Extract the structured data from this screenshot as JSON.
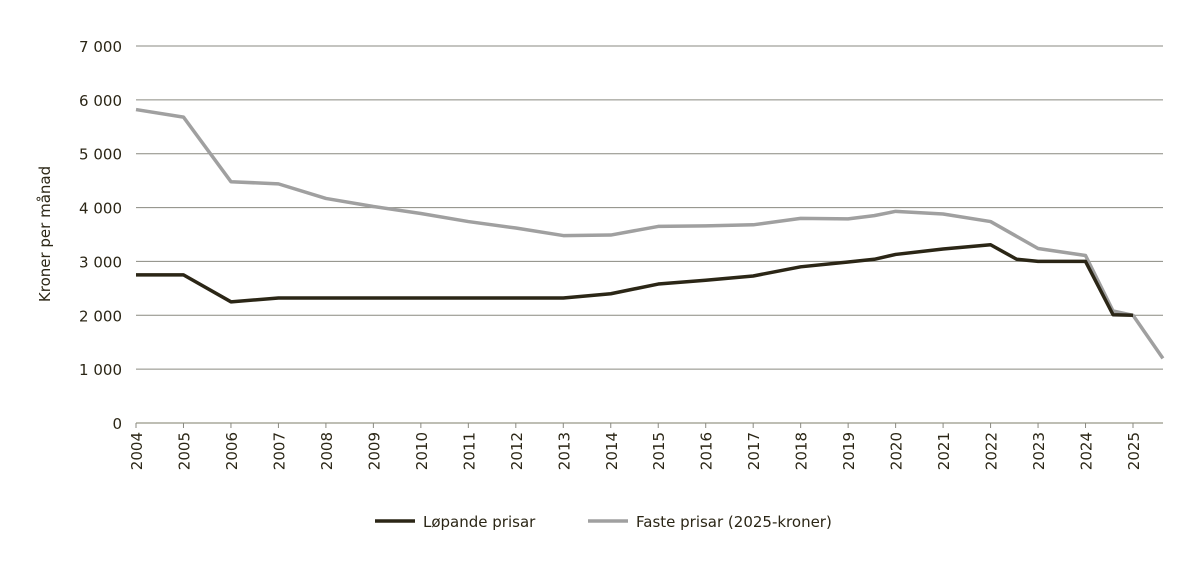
{
  "chart_data": {
    "type": "line",
    "title": "",
    "xlabel": "",
    "ylabel": "Kroner per månad",
    "xlim": [
      2004,
      2025.63
    ],
    "ylim": [
      0,
      7000
    ],
    "x_ticks": [
      "2004",
      "2005",
      "2006",
      "2007",
      "2008",
      "2009",
      "2010",
      "2011",
      "2012",
      "2013",
      "2014",
      "2015",
      "2016",
      "2017",
      "2018",
      "2019",
      "2020",
      "2021",
      "2022",
      "2023",
      "2024",
      "2025"
    ],
    "y_ticks": [
      {
        "value": 0,
        "label": "0"
      },
      {
        "value": 1000,
        "label": "1 000"
      },
      {
        "value": 2000,
        "label": "2 000"
      },
      {
        "value": 3000,
        "label": "3 000"
      },
      {
        "value": 4000,
        "label": "4 000"
      },
      {
        "value": 5000,
        "label": "5 000"
      },
      {
        "value": 6000,
        "label": "6 000"
      },
      {
        "value": 7000,
        "label": "7 000"
      }
    ],
    "grid": true,
    "legend_position": "bottom",
    "series": [
      {
        "name": "Løpande prisar",
        "color": "#2b2616",
        "points": [
          [
            2004,
            2750
          ],
          [
            2005,
            2750
          ],
          [
            2006,
            2250
          ],
          [
            2007,
            2320
          ],
          [
            2008,
            2320
          ],
          [
            2009,
            2320
          ],
          [
            2010,
            2320
          ],
          [
            2011,
            2320
          ],
          [
            2012,
            2320
          ],
          [
            2013,
            2320
          ],
          [
            2014,
            2400
          ],
          [
            2015,
            2580
          ],
          [
            2016,
            2650
          ],
          [
            2017,
            2730
          ],
          [
            2018,
            2900
          ],
          [
            2019,
            2990
          ],
          [
            2019.55,
            3040
          ],
          [
            2020,
            3130
          ],
          [
            2021,
            3230
          ],
          [
            2022,
            3310
          ],
          [
            2022.55,
            3040
          ],
          [
            2023,
            3000
          ],
          [
            2024,
            3000
          ],
          [
            2024.58,
            2010
          ],
          [
            2025,
            2000
          ]
        ]
      },
      {
        "name": "Faste prisar (2025-kroner)",
        "color": "#a0a0a0",
        "points": [
          [
            2004,
            5820
          ],
          [
            2005,
            5680
          ],
          [
            2006,
            4480
          ],
          [
            2007,
            4440
          ],
          [
            2008,
            4170
          ],
          [
            2009,
            4020
          ],
          [
            2010,
            3890
          ],
          [
            2011,
            3740
          ],
          [
            2012,
            3620
          ],
          [
            2013,
            3480
          ],
          [
            2014,
            3490
          ],
          [
            2015,
            3650
          ],
          [
            2016,
            3660
          ],
          [
            2017,
            3680
          ],
          [
            2018,
            3800
          ],
          [
            2019,
            3790
          ],
          [
            2019.55,
            3850
          ],
          [
            2020,
            3930
          ],
          [
            2021,
            3880
          ],
          [
            2022,
            3740
          ],
          [
            2023,
            3240
          ],
          [
            2024,
            3110
          ],
          [
            2024.58,
            2080
          ],
          [
            2025,
            2000
          ],
          [
            2025.63,
            1200
          ]
        ]
      }
    ]
  }
}
